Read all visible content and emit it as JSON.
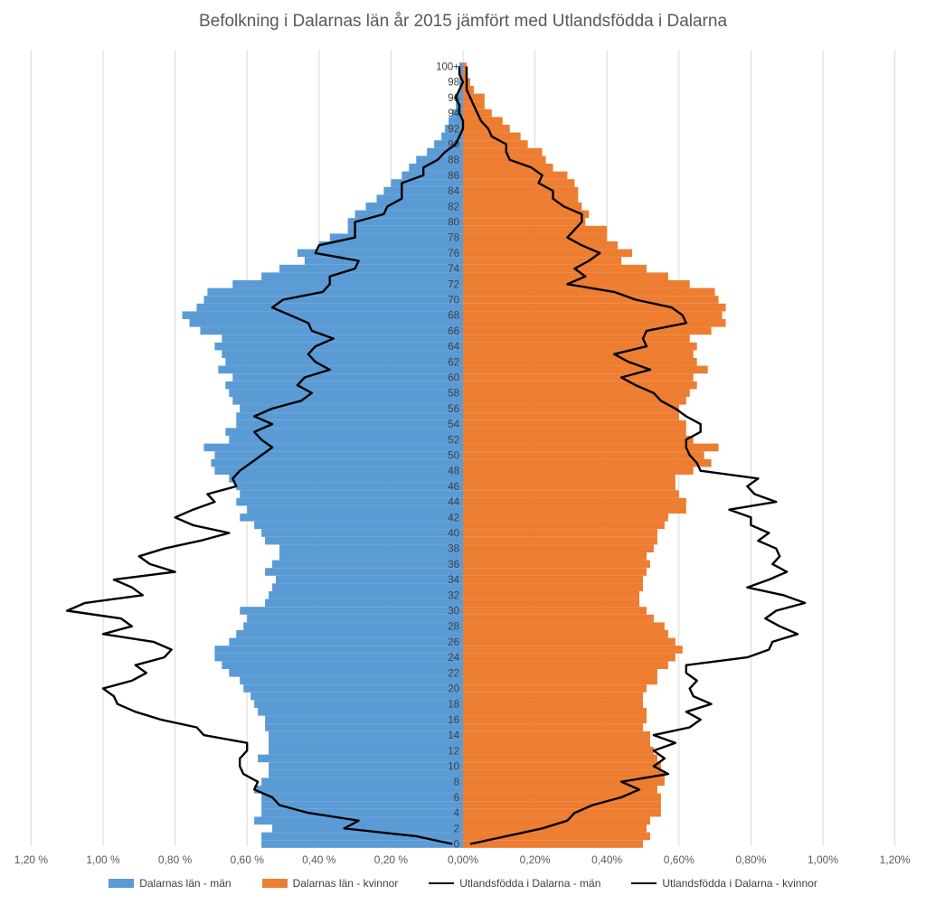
{
  "chart_data": {
    "type": "bar",
    "orientation": "horizontal-population-pyramid",
    "title": "Befolkning i Dalarnas län år 2015 jämfört med Utlandsfödda i Dalarna",
    "xlim": [
      -1.2,
      1.2
    ],
    "x_ticks": [
      -1.2,
      -1.0,
      -0.8,
      -0.6,
      -0.4,
      -0.2,
      0.0,
      0.2,
      0.4,
      0.6,
      0.8,
      1.0,
      1.2
    ],
    "x_tick_labels": [
      "1,20 %",
      "1,00 %",
      "0,80 %",
      "0,60 %",
      "0,40 %",
      "0,20 %",
      "0,00%",
      "0,20%",
      "0,40%",
      "0,60%",
      "0,80%",
      "1,00%",
      "1,20%"
    ],
    "y_tick_labels": [
      "0",
      "2",
      "4",
      "6",
      "8",
      "10",
      "12",
      "14",
      "16",
      "18",
      "20",
      "22",
      "24",
      "26",
      "28",
      "30",
      "32",
      "34",
      "36",
      "38",
      "40",
      "42",
      "44",
      "46",
      "48",
      "50",
      "52",
      "54",
      "56",
      "58",
      "60",
      "62",
      "64",
      "66",
      "68",
      "70",
      "72",
      "74",
      "76",
      "78",
      "80",
      "82",
      "84",
      "86",
      "88",
      "90",
      "92",
      "94",
      "96",
      "98",
      "100+"
    ],
    "grid": true,
    "legend_position": "bottom",
    "series": [
      {
        "name": "Dalarnas län - män",
        "type": "bar",
        "color": "#5B9BD5",
        "values": [
          0.56,
          0.56,
          0.53,
          0.58,
          0.56,
          0.56,
          0.56,
          0.58,
          0.56,
          0.54,
          0.54,
          0.57,
          0.54,
          0.54,
          0.54,
          0.55,
          0.55,
          0.57,
          0.58,
          0.59,
          0.61,
          0.62,
          0.65,
          0.67,
          0.69,
          0.69,
          0.65,
          0.63,
          0.61,
          0.6,
          0.62,
          0.55,
          0.54,
          0.53,
          0.52,
          0.55,
          0.53,
          0.51,
          0.51,
          0.55,
          0.56,
          0.58,
          0.62,
          0.6,
          0.63,
          0.62,
          0.63,
          0.65,
          0.69,
          0.7,
          0.69,
          0.72,
          0.65,
          0.66,
          0.63,
          0.63,
          0.62,
          0.64,
          0.65,
          0.66,
          0.64,
          0.68,
          0.66,
          0.67,
          0.69,
          0.67,
          0.73,
          0.76,
          0.78,
          0.74,
          0.72,
          0.71,
          0.64,
          0.56,
          0.51,
          0.44,
          0.46,
          0.4,
          0.37,
          0.32,
          0.32,
          0.3,
          0.27,
          0.24,
          0.22,
          0.2,
          0.17,
          0.15,
          0.13,
          0.1,
          0.08,
          0.06,
          0.05,
          0.04,
          0.03,
          0.02,
          0.02,
          0.01,
          0.01,
          0.01,
          0.01
        ]
      },
      {
        "name": "Dalarnas län - kvinnor",
        "type": "bar",
        "color": "#ED7D31",
        "values": [
          0.5,
          0.52,
          0.51,
          0.52,
          0.55,
          0.55,
          0.55,
          0.54,
          0.56,
          0.56,
          0.55,
          0.54,
          0.53,
          0.52,
          0.52,
          0.5,
          0.51,
          0.51,
          0.5,
          0.5,
          0.51,
          0.54,
          0.54,
          0.57,
          0.59,
          0.61,
          0.59,
          0.57,
          0.56,
          0.53,
          0.51,
          0.49,
          0.49,
          0.5,
          0.5,
          0.51,
          0.52,
          0.51,
          0.53,
          0.54,
          0.54,
          0.56,
          0.57,
          0.62,
          0.62,
          0.6,
          0.59,
          0.59,
          0.64,
          0.69,
          0.67,
          0.71,
          0.64,
          0.62,
          0.62,
          0.6,
          0.6,
          0.62,
          0.63,
          0.65,
          0.64,
          0.68,
          0.65,
          0.64,
          0.65,
          0.63,
          0.69,
          0.73,
          0.72,
          0.73,
          0.71,
          0.7,
          0.63,
          0.57,
          0.51,
          0.44,
          0.47,
          0.43,
          0.4,
          0.4,
          0.34,
          0.35,
          0.33,
          0.32,
          0.32,
          0.31,
          0.29,
          0.25,
          0.23,
          0.22,
          0.18,
          0.16,
          0.13,
          0.11,
          0.08,
          0.06,
          0.06,
          0.03,
          0.02,
          0.01,
          0.01
        ]
      },
      {
        "name": "Utlandsfödda i Dalarna - män",
        "type": "line",
        "color": "#000000",
        "values": [
          0.03,
          0.13,
          0.33,
          0.29,
          0.43,
          0.51,
          0.53,
          0.58,
          0.57,
          0.61,
          0.62,
          0.62,
          0.6,
          0.6,
          0.72,
          0.74,
          0.84,
          0.91,
          0.96,
          0.97,
          1.0,
          0.92,
          0.88,
          0.91,
          0.83,
          0.81,
          0.86,
          1.0,
          0.92,
          0.95,
          1.1,
          1.05,
          0.89,
          0.92,
          0.97,
          0.8,
          0.87,
          0.9,
          0.83,
          0.73,
          0.65,
          0.75,
          0.8,
          0.75,
          0.69,
          0.71,
          0.63,
          0.64,
          0.62,
          0.59,
          0.56,
          0.53,
          0.56,
          0.58,
          0.53,
          0.58,
          0.53,
          0.45,
          0.42,
          0.46,
          0.44,
          0.37,
          0.41,
          0.43,
          0.41,
          0.36,
          0.42,
          0.43,
          0.48,
          0.53,
          0.5,
          0.39,
          0.37,
          0.37,
          0.3,
          0.29,
          0.41,
          0.4,
          0.3,
          0.3,
          0.3,
          0.22,
          0.21,
          0.17,
          0.17,
          0.17,
          0.11,
          0.11,
          0.07,
          0.05,
          0.02,
          0.01,
          0.0,
          0.0,
          0.01,
          0.01,
          0.02,
          0.01,
          0.0,
          0.01,
          0.01
        ]
      },
      {
        "name": "Utlandsfödda i Dalarna - kvinnor",
        "type": "line",
        "color": "#000000",
        "values": [
          0.02,
          0.12,
          0.22,
          0.29,
          0.31,
          0.36,
          0.44,
          0.49,
          0.44,
          0.57,
          0.53,
          0.56,
          0.53,
          0.59,
          0.53,
          0.63,
          0.66,
          0.62,
          0.69,
          0.64,
          0.63,
          0.65,
          0.62,
          0.62,
          0.79,
          0.85,
          0.86,
          0.93,
          0.88,
          0.84,
          0.87,
          0.95,
          0.89,
          0.79,
          0.85,
          0.9,
          0.86,
          0.88,
          0.87,
          0.82,
          0.85,
          0.8,
          0.8,
          0.74,
          0.87,
          0.81,
          0.79,
          0.82,
          0.66,
          0.65,
          0.63,
          0.62,
          0.62,
          0.66,
          0.66,
          0.62,
          0.59,
          0.55,
          0.53,
          0.48,
          0.44,
          0.52,
          0.46,
          0.42,
          0.51,
          0.5,
          0.51,
          0.62,
          0.61,
          0.58,
          0.48,
          0.42,
          0.29,
          0.34,
          0.31,
          0.35,
          0.38,
          0.33,
          0.29,
          0.31,
          0.33,
          0.33,
          0.28,
          0.25,
          0.25,
          0.21,
          0.22,
          0.19,
          0.13,
          0.12,
          0.12,
          0.08,
          0.07,
          0.05,
          0.04,
          0.03,
          0.02,
          0.01,
          0.01,
          0.01,
          0.01
        ]
      }
    ]
  }
}
